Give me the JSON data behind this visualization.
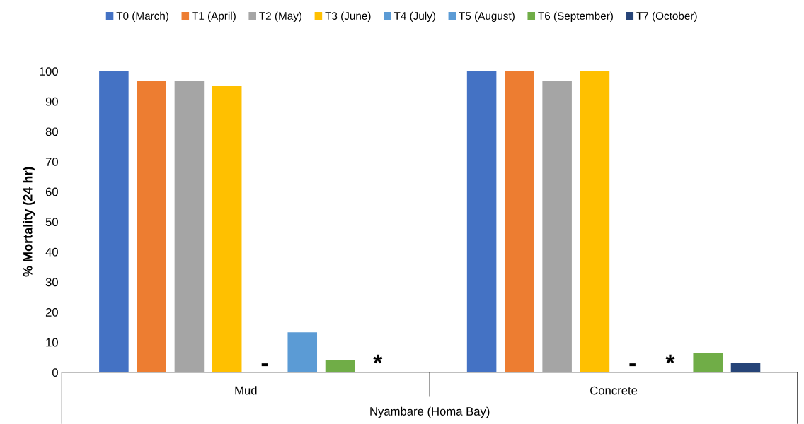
{
  "chart_data": {
    "type": "bar",
    "xlabel": "Nyambare (Homa Bay)",
    "ylabel": "% Mortality (24 hr)",
    "categories": [
      "Mud",
      "Concrete"
    ],
    "series": [
      {
        "name": "T0 (March)",
        "color": "#4472c4",
        "values": [
          100,
          100
        ]
      },
      {
        "name": "T1 (April)",
        "color": "#ed7d31",
        "values": [
          96.7,
          100
        ]
      },
      {
        "name": "T2 (May)",
        "color": "#a5a5a5",
        "values": [
          96.7,
          96.7
        ]
      },
      {
        "name": "T3 (June)",
        "color": "#ffc000",
        "values": [
          95,
          100
        ]
      },
      {
        "name": "T4 (July)",
        "color": "#5b9bd5",
        "values": [
          null,
          null
        ],
        "value_labels": [
          "-",
          "-"
        ]
      },
      {
        "name": "T5 (August)",
        "color": "#5b9bd5",
        "values": [
          13.3,
          null
        ],
        "value_labels": [
          null,
          "*"
        ]
      },
      {
        "name": "T6 (September)",
        "color": "#70ad47",
        "values": [
          4.2,
          6.5
        ]
      },
      {
        "name": "T7 (October)",
        "color": "#264478",
        "values": [
          null,
          3
        ],
        "value_labels": [
          "*",
          null
        ]
      }
    ],
    "ylim": [
      0,
      100
    ],
    "yticks": [
      0,
      10,
      20,
      30,
      40,
      50,
      60,
      70,
      80,
      90,
      100
    ],
    "grid": false,
    "legend": "top"
  }
}
